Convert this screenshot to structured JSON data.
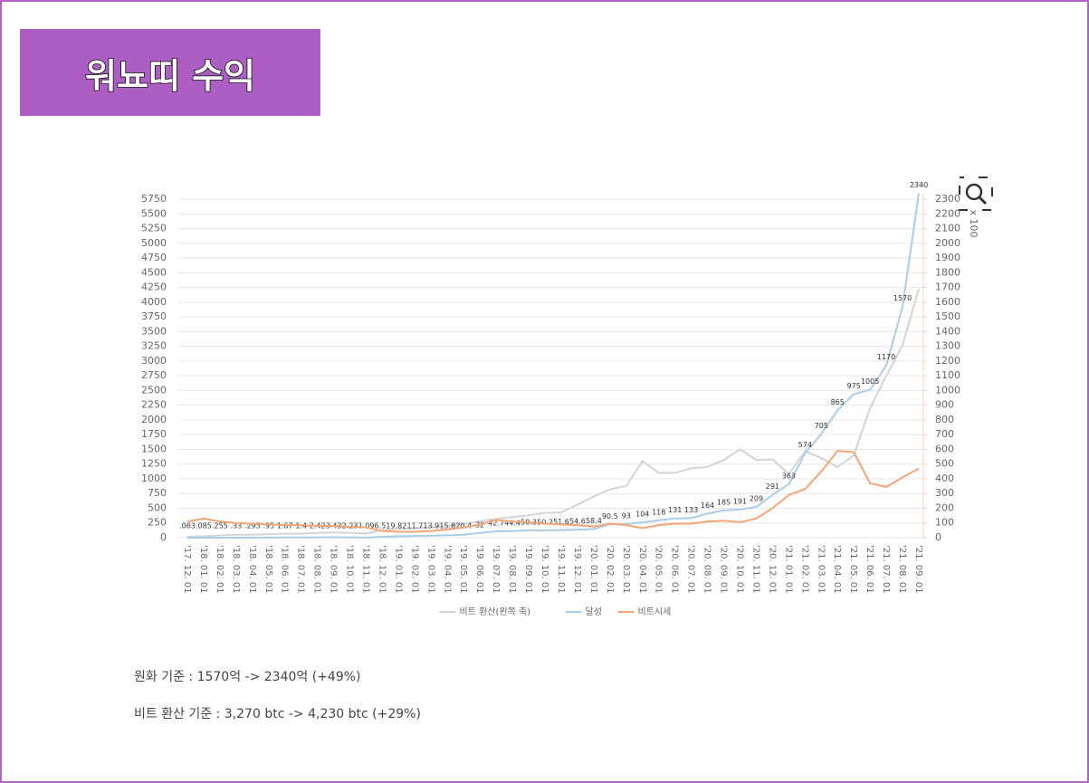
{
  "header": {
    "title": "워뇨띠 수익"
  },
  "chart_data": {
    "type": "line",
    "y2label": "x 100",
    "categories": [
      "'17. 12. 01",
      "'18. 01. 01",
      "'18. 02. 01",
      "'18. 03. 01",
      "'18. 04. 01",
      "'18. 05. 01",
      "'18. 06. 01",
      "'18. 07. 01",
      "'18. 08. 01",
      "'18. 09. 01",
      "'18. 10. 01",
      "'18. 11. 01",
      "'18. 12. 01",
      "'19. 01. 01",
      "'19. 02. 01",
      "'19. 03. 01",
      "'19. 04. 01",
      "'19. 05. 01",
      "'19. 06. 01",
      "'19. 07. 01",
      "'19. 08. 01",
      "'19. 09. 01",
      "'19. 10. 01",
      "'19. 11. 01",
      "'19. 12. 01",
      "'20. 01. 01",
      "'20. 02. 01",
      "'20. 03. 01",
      "'20. 04. 01",
      "'20. 05. 01",
      "'20. 06. 01",
      "'20. 07. 01",
      "'20. 08. 01",
      "'20. 09. 01",
      "'20. 10. 01",
      "'20. 11. 01",
      "'20. 12. 01",
      "'21. 01. 01",
      "'21. 02. 01",
      "'21. 03. 01",
      "'21. 04. 01",
      "'21. 05. 01",
      "'21. 06. 01",
      "'21. 07. 01",
      "'21. 08. 01",
      "'21. 09. 01"
    ],
    "series": [
      {
        "name": "비트 환산(왼쪽 축)",
        "color": "#d4d4d4",
        "values": [
          20,
          25,
          40,
          50,
          50,
          60,
          70,
          70,
          80,
          90,
          80,
          70,
          130,
          150,
          160,
          180,
          200,
          230,
          280,
          320,
          350,
          380,
          420,
          430,
          560,
          700,
          820,
          880,
          1300,
          1100,
          1100,
          1180,
          1200,
          1320,
          1500,
          1320,
          1330,
          1080,
          1470,
          1350,
          1200,
          1400,
          2200,
          2750,
          3270,
          4230
        ]
      },
      {
        "name": "달성",
        "color": "#a9cde8",
        "axis": "y2",
        "values": [
          0.063,
          0.085,
          0.255,
          0.33,
          0.295,
          0.95,
          1.67,
          1.4,
          2.42,
          3.43,
          2.23,
          1.09,
          6.51,
          9.82,
          11.7,
          13.9,
          15.8,
          20.4,
          32,
          42.7,
          44.4,
          50.3,
          50.2,
          51.6,
          54.6,
          58.4,
          90.5,
          93,
          104,
          118,
          131,
          133,
          164,
          185,
          191,
          209,
          291,
          363,
          574,
          705,
          865,
          975,
          1005,
          1170,
          1570,
          2340
        ],
        "value_labels": [
          ".063",
          ".085",
          ".255",
          ".33",
          ".295",
          ".95",
          "1.67",
          "1.4",
          "2.42",
          "3.43",
          "2.23",
          "1.09",
          "6.51",
          "9.82",
          "11.7",
          "13.9",
          "15.8",
          "20.4",
          "32",
          "42.7",
          "44.4",
          "50.3",
          "50.2",
          "51.6",
          "54.6",
          "58.4",
          "90.5",
          "93",
          "104",
          "118",
          "131",
          "133",
          "164",
          "185",
          "191",
          "209",
          "291",
          "363",
          "574",
          "705",
          "865",
          "975",
          "1005",
          "1170",
          "1570",
          "2340"
        ]
      },
      {
        "name": "비트시세",
        "color": "#f2a676",
        "axis": "y2",
        "values": [
          110,
          130,
          110,
          100,
          95,
          90,
          85,
          85,
          80,
          80,
          75,
          70,
          45,
          40,
          40,
          45,
          55,
          70,
          90,
          120,
          110,
          105,
          95,
          90,
          85,
          75,
          95,
          85,
          65,
          85,
          95,
          95,
          110,
          115,
          105,
          130,
          200,
          290,
          330,
          450,
          590,
          580,
          370,
          345,
          410,
          470
        ]
      }
    ],
    "ylim": [
      0,
      5750
    ],
    "yticks": [
      0,
      250,
      500,
      750,
      1000,
      1250,
      1500,
      1750,
      2000,
      2250,
      2500,
      2750,
      3000,
      3250,
      3500,
      3750,
      4000,
      4250,
      4500,
      4750,
      5000,
      5250,
      5500,
      5750
    ],
    "y2lim": [
      0,
      2300
    ],
    "y2ticks": [
      0,
      100,
      200,
      300,
      400,
      500,
      600,
      700,
      800,
      900,
      1000,
      1100,
      1200,
      1300,
      1400,
      1500,
      1600,
      1700,
      1800,
      1900,
      2000,
      2100,
      2200,
      2300
    ],
    "grid": true
  },
  "captions": [
    "원화 기준 : 1570억 -> 2340억 (+49%)",
    "비트 환산 기준 : 3,270 btc -> 4,230 btc (+29%)"
  ]
}
